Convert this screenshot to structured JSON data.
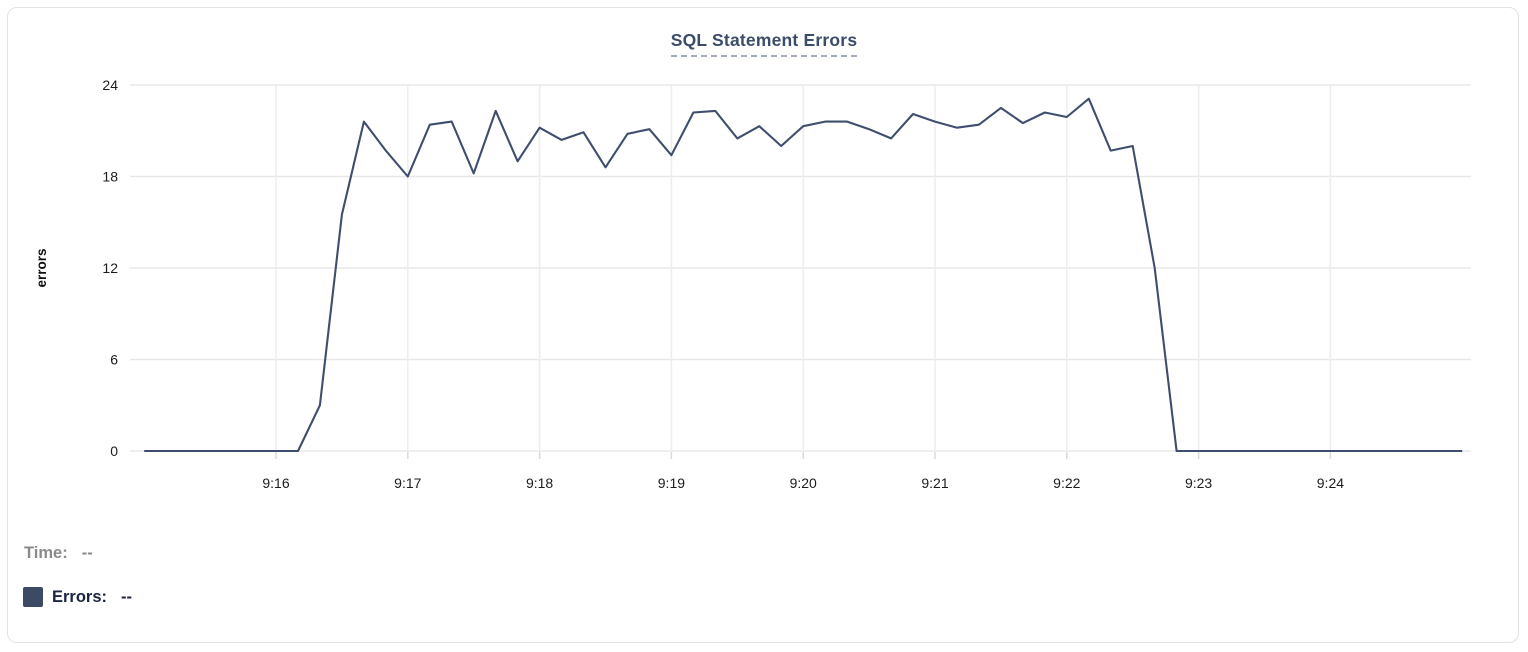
{
  "colors": {
    "line": "#3F4E6E",
    "title": "#3C4C6B",
    "title_underline": "#A2ABBE",
    "grid_horizontal": "#E8E8E8",
    "grid_vertical": "#EDEDED",
    "tick_mark": "#DADADA",
    "tick_text": "#1C1C1C",
    "axis_title_text": "#111111",
    "card_border": "#E3E3E3",
    "card_bg": "#FFFFFF",
    "legend_time": "#8A8A8A",
    "legend_errors": "#1B2542",
    "swatch": "#3D4A66"
  },
  "header": {
    "title": "SQL Statement Errors"
  },
  "legend": {
    "time_label": "Time:",
    "time_value": "--",
    "errors_label": "Errors:",
    "errors_value": "--"
  },
  "chart_data": {
    "type": "line",
    "title": "SQL Statement Errors",
    "xlabel": "",
    "ylabel": "errors",
    "ylim": [
      0,
      24
    ],
    "y_ticks": [
      0,
      6,
      12,
      18,
      24
    ],
    "x_ticks": [
      "9:16",
      "9:17",
      "9:18",
      "9:19",
      "9:20",
      "9:21",
      "9:22",
      "9:23",
      "9:24"
    ],
    "grid": true,
    "legend_position": "bottom-left",
    "series": [
      {
        "name": "Errors",
        "color": "#3F4E6E",
        "points": [
          [
            "9:15:00",
            0
          ],
          [
            "9:15:10",
            0
          ],
          [
            "9:15:20",
            0
          ],
          [
            "9:15:30",
            0
          ],
          [
            "9:15:40",
            0
          ],
          [
            "9:15:50",
            0
          ],
          [
            "9:16:00",
            0
          ],
          [
            "9:16:10",
            0
          ],
          [
            "9:16:20",
            3
          ],
          [
            "9:16:30",
            15.5
          ],
          [
            "9:16:40",
            21.6
          ],
          [
            "9:16:50",
            19.7
          ],
          [
            "9:17:00",
            18
          ],
          [
            "9:17:10",
            21.4
          ],
          [
            "9:17:20",
            21.6
          ],
          [
            "9:17:30",
            18.2
          ],
          [
            "9:17:40",
            22.3
          ],
          [
            "9:17:50",
            19
          ],
          [
            "9:18:00",
            21.2
          ],
          [
            "9:18:10",
            20.4
          ],
          [
            "9:18:20",
            20.9
          ],
          [
            "9:18:30",
            18.6
          ],
          [
            "9:18:40",
            20.8
          ],
          [
            "9:18:50",
            21.1
          ],
          [
            "9:19:00",
            19.4
          ],
          [
            "9:19:10",
            22.2
          ],
          [
            "9:19:20",
            22.3
          ],
          [
            "9:19:30",
            20.5
          ],
          [
            "9:19:40",
            21.3
          ],
          [
            "9:19:50",
            20
          ],
          [
            "9:20:00",
            21.3
          ],
          [
            "9:20:10",
            21.6
          ],
          [
            "9:20:20",
            21.6
          ],
          [
            "9:20:30",
            21.1
          ],
          [
            "9:20:40",
            20.5
          ],
          [
            "9:20:50",
            22.1
          ],
          [
            "9:21:00",
            21.6
          ],
          [
            "9:21:10",
            21.2
          ],
          [
            "9:21:20",
            21.4
          ],
          [
            "9:21:30",
            22.5
          ],
          [
            "9:21:40",
            21.5
          ],
          [
            "9:21:50",
            22.2
          ],
          [
            "9:22:00",
            21.9
          ],
          [
            "9:22:10",
            23.1
          ],
          [
            "9:22:20",
            19.7
          ],
          [
            "9:22:30",
            20
          ],
          [
            "9:22:40",
            12
          ],
          [
            "9:22:50",
            0
          ],
          [
            "9:23:00",
            0
          ],
          [
            "9:23:10",
            0
          ],
          [
            "9:23:20",
            0
          ],
          [
            "9:23:30",
            0
          ],
          [
            "9:23:40",
            0
          ],
          [
            "9:23:50",
            0
          ],
          [
            "9:24:00",
            0
          ],
          [
            "9:24:10",
            0
          ],
          [
            "9:24:20",
            0
          ],
          [
            "9:24:30",
            0
          ],
          [
            "9:24:40",
            0
          ],
          [
            "9:24:50",
            0
          ],
          [
            "9:25:00",
            0
          ]
        ]
      }
    ]
  }
}
